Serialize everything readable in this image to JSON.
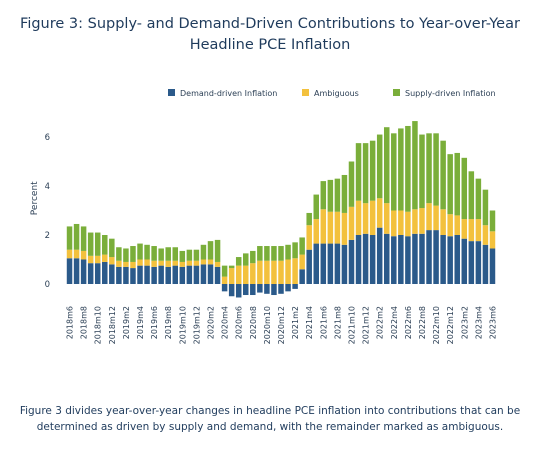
{
  "chart_data": {
    "type": "bar",
    "stacked": true,
    "title": "Figure 3: Supply- and Demand-Driven Contributions to Year-over-Year Headline PCE Inflation",
    "title_lines": [
      "Figure 3: Supply- and Demand-Driven Contributions to Year-over-Year",
      "Headline PCE Inflation"
    ],
    "xlabel": "",
    "ylabel": "Percent",
    "ylim": [
      -0.8,
      7.2
    ],
    "yticks": [
      0,
      2,
      4,
      6
    ],
    "grid": false,
    "legend_position": "top-right",
    "categories": [
      "2018m6",
      "2018m7",
      "2018m8",
      "2018m9",
      "2018m10",
      "2018m11",
      "2018m12",
      "2019m1",
      "2019m2",
      "2019m3",
      "2019m4",
      "2019m5",
      "2019m6",
      "2019m7",
      "2019m8",
      "2019m9",
      "2019m10",
      "2019m11",
      "2019m12",
      "2020m1",
      "2020m2",
      "2020m3",
      "2020m4",
      "2020m5",
      "2020m6",
      "2020m7",
      "2020m8",
      "2020m9",
      "2020m10",
      "2020m11",
      "2020m12",
      "2021m1",
      "2021m2",
      "2021m3",
      "2021m4",
      "2021m5",
      "2021m6",
      "2021m7",
      "2021m8",
      "2021m9",
      "2021m10",
      "2021m11",
      "2021m12",
      "2022m1",
      "2022m2",
      "2022m3",
      "2022m4",
      "2022m5",
      "2022m6",
      "2022m7",
      "2022m8",
      "2022m9",
      "2022m10",
      "2022m11",
      "2022m12",
      "2023m1",
      "2023m2",
      "2023m3",
      "2023m4",
      "2023m5",
      "2023m6"
    ],
    "tick_labels": [
      "2018m6",
      "2018m8",
      "2018m10",
      "2018m12",
      "2019m2",
      "2019m4",
      "2019m6",
      "2019m8",
      "2019m10",
      "2019m12",
      "2020m2",
      "2020m4",
      "2020m6",
      "2020m8",
      "2020m10",
      "2020m12",
      "2021m2",
      "2021m4",
      "2021m6",
      "2021m8",
      "2021m10",
      "2021m12",
      "2022m2",
      "2022m4",
      "2022m6",
      "2022m8",
      "2022m10",
      "2022m12",
      "2023m2",
      "2023m4",
      "2023m6"
    ],
    "series": [
      {
        "name": "Demand-driven Inflation",
        "color": "#2b5a8a",
        "values": [
          1.05,
          1.05,
          1.0,
          0.85,
          0.85,
          0.9,
          0.8,
          0.7,
          0.7,
          0.65,
          0.75,
          0.75,
          0.7,
          0.75,
          0.7,
          0.75,
          0.7,
          0.75,
          0.75,
          0.8,
          0.8,
          0.7,
          -0.3,
          -0.5,
          -0.55,
          -0.45,
          -0.45,
          -0.35,
          -0.4,
          -0.45,
          -0.4,
          -0.3,
          -0.2,
          0.6,
          1.4,
          1.65,
          1.65,
          1.65,
          1.65,
          1.6,
          1.8,
          2.0,
          2.05,
          2.0,
          2.3,
          2.05,
          1.95,
          2.0,
          1.95,
          2.05,
          2.05,
          2.2,
          2.2,
          2.0,
          1.95,
          2.0,
          1.85,
          1.75,
          1.75,
          1.6,
          1.45
        ]
      },
      {
        "name": "Ambiguous",
        "color": "#f3c13d",
        "values": [
          0.35,
          0.35,
          0.35,
          0.3,
          0.3,
          0.3,
          0.3,
          0.25,
          0.2,
          0.25,
          0.25,
          0.25,
          0.25,
          0.2,
          0.25,
          0.2,
          0.2,
          0.2,
          0.2,
          0.2,
          0.2,
          0.2,
          0.3,
          0.65,
          0.75,
          0.75,
          0.85,
          0.95,
          0.95,
          0.95,
          0.95,
          1.0,
          1.05,
          0.6,
          1.0,
          1.0,
          1.4,
          1.3,
          1.3,
          1.3,
          1.35,
          1.4,
          1.25,
          1.4,
          1.2,
          1.25,
          1.05,
          1.0,
          1.0,
          1.0,
          1.05,
          1.1,
          1.0,
          1.05,
          0.9,
          0.8,
          0.8,
          0.9,
          0.9,
          0.8,
          0.7
        ]
      },
      {
        "name": "Supply-driven Inflation",
        "color": "#7aae3a",
        "values": [
          0.95,
          1.05,
          1.0,
          0.95,
          0.95,
          0.8,
          0.75,
          0.55,
          0.55,
          0.65,
          0.65,
          0.6,
          0.6,
          0.5,
          0.55,
          0.55,
          0.45,
          0.45,
          0.45,
          0.6,
          0.75,
          0.9,
          0.45,
          0.1,
          0.35,
          0.5,
          0.5,
          0.6,
          0.6,
          0.6,
          0.6,
          0.6,
          0.65,
          0.7,
          0.5,
          1.0,
          1.15,
          1.3,
          1.35,
          1.55,
          1.85,
          2.35,
          2.45,
          2.45,
          2.6,
          3.1,
          3.15,
          3.35,
          3.5,
          3.6,
          3.0,
          2.85,
          2.95,
          2.8,
          2.45,
          2.55,
          2.5,
          1.95,
          1.65,
          1.45,
          0.85
        ]
      }
    ],
    "annotation_caption": "Figure 3 divides year-over-year changes in headline PCE inflation into contributions that can be determined as driven by supply and demand, with the remainder marked as ambiguous."
  }
}
